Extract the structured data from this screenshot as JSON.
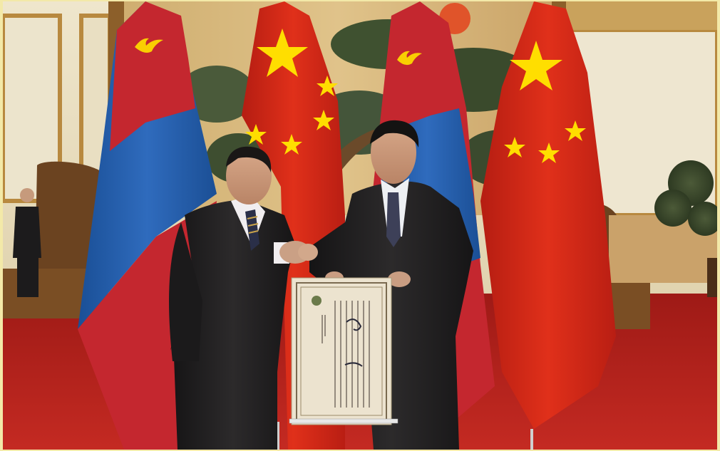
{
  "photo": {
    "colors": {
      "border": "#f3e9a8",
      "wall_panel": "#e6dcc0",
      "wall_wood": "#b8893f",
      "mural": "#d8b675",
      "carpet": "#b3201b",
      "suit": "#1f1d1e",
      "china_red": "#de2910",
      "china_star": "#ffde00",
      "mongolia_red": "#c4272f",
      "mongolia_blue": "#015197",
      "mongolia_soyombo": "#f9cf02",
      "scroll_paper": "#ece3cf"
    },
    "icons": [
      "china-flag",
      "mongolia-flag",
      "soyombo-emblem",
      "five-pointed-star"
    ]
  }
}
